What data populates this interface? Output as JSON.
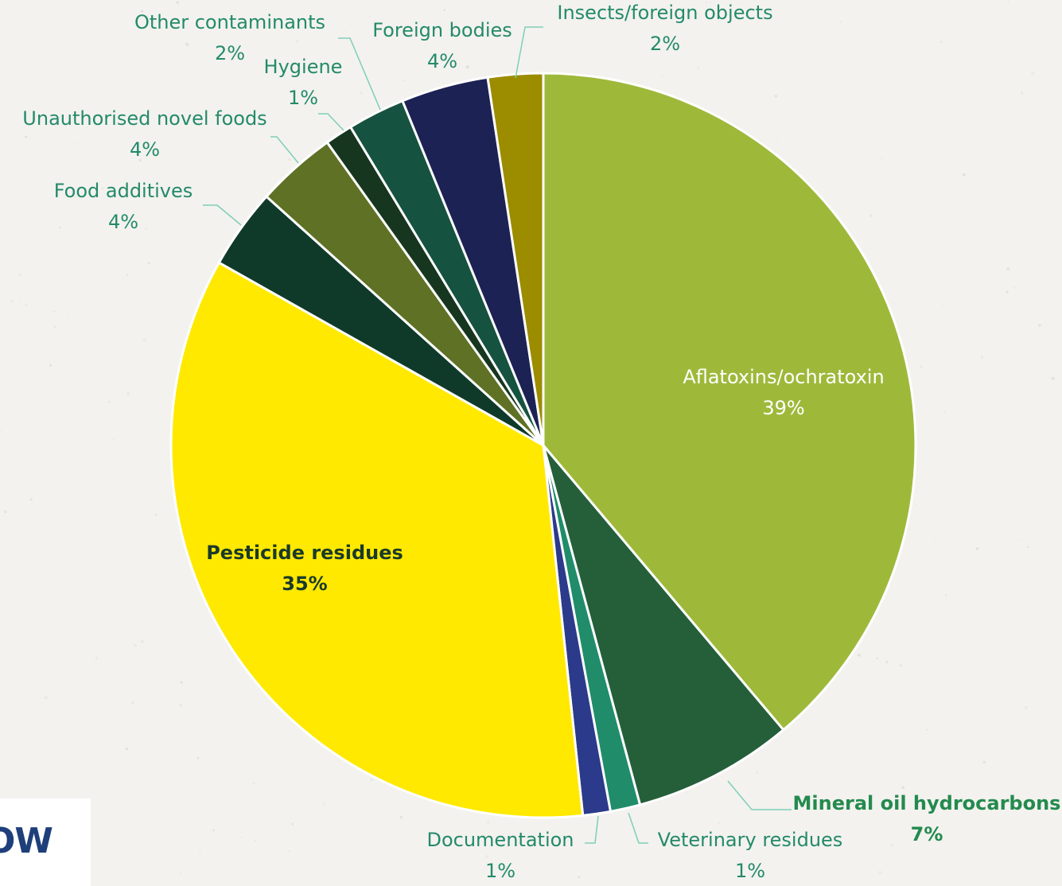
{
  "chart_data": {
    "type": "pie",
    "title": "",
    "slices": [
      {
        "label": "Aflatoxins/ochratoxin",
        "value": 39,
        "pct_text": "39%",
        "color": "#9eb93a",
        "label_color": "#ffffff",
        "bold": false
      },
      {
        "label": "Mineral oil hydrocarbons",
        "value": 7,
        "pct_text": "7%",
        "color": "#245f3a",
        "label_color": "#248a4e",
        "bold": true
      },
      {
        "label": "Veterinary residues",
        "value": 1.3,
        "pct_text": "1%",
        "color": "#208c6a",
        "label_color": "#248a6a",
        "bold": false
      },
      {
        "label": "Documentation",
        "value": 1.2,
        "pct_text": "1%",
        "color": "#2b3a8a",
        "label_color": "#248a6a",
        "bold": false
      },
      {
        "label": "Pesticide residues",
        "value": 35,
        "pct_text": "35%",
        "color": "#ffe900",
        "label_color": "#1a3a2a",
        "bold": true
      },
      {
        "label": "Food additives",
        "value": 3.5,
        "pct_text": "4%",
        "color": "#0f3a2a",
        "label_color": "#248a6a",
        "bold": false
      },
      {
        "label": "Unauthorised novel foods",
        "value": 3.5,
        "pct_text": "4%",
        "color": "#5f7124",
        "label_color": "#248a6a",
        "bold": false
      },
      {
        "label": "Hygiene",
        "value": 1.2,
        "pct_text": "1%",
        "color": "#17361f",
        "label_color": "#248a6a",
        "bold": false
      },
      {
        "label": "Other contaminants",
        "value": 2.5,
        "pct_text": "2%",
        "color": "#165240",
        "label_color": "#248a6a",
        "bold": false
      },
      {
        "label": "Foreign bodies",
        "value": 3.8,
        "pct_text": "4%",
        "color": "#1d2254",
        "label_color": "#248a6a",
        "bold": false
      },
      {
        "label": "Insects/foreign objects",
        "value": 2.4,
        "pct_text": "2%",
        "color": "#9c8c00",
        "label_color": "#248a6a",
        "bold": false
      }
    ],
    "leader_line_color": "#7fcfb5",
    "logo_text": "OW"
  }
}
